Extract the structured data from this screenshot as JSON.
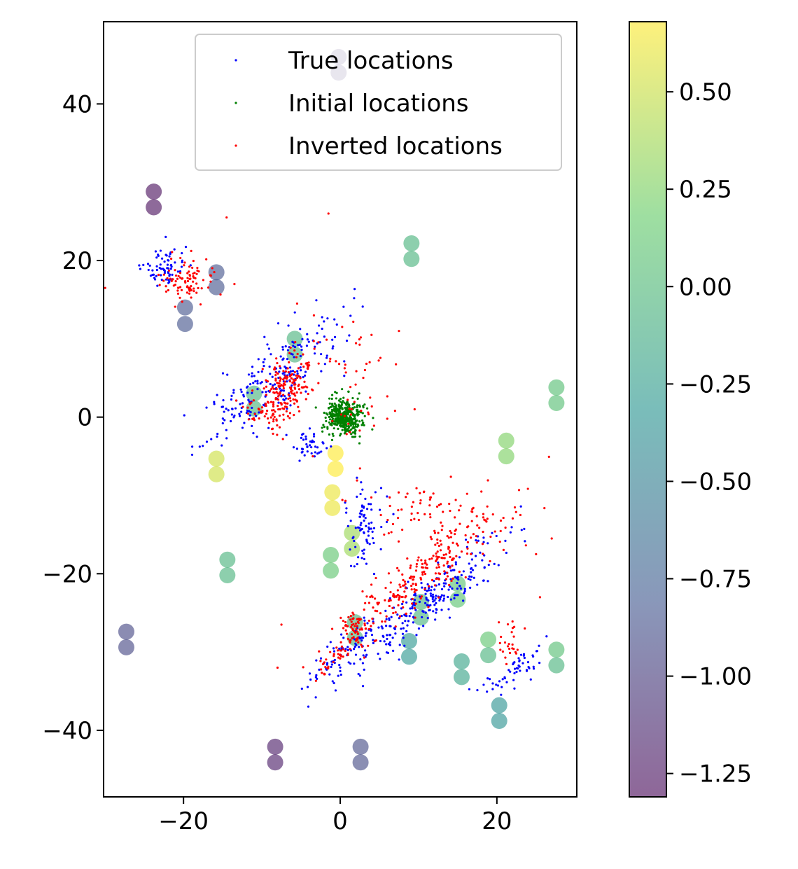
{
  "chart_data": {
    "type": "scatter",
    "xlim": [
      -30.2,
      30.2
    ],
    "ylim": [
      -48.5,
      50.5
    ],
    "x_ticks": [
      -20,
      0,
      20
    ],
    "y_ticks": [
      -40,
      -20,
      0,
      20,
      40
    ],
    "x_tick_labels": [
      "−20",
      "0",
      "20"
    ],
    "y_tick_labels": [
      "−40",
      "−20",
      "0",
      "20",
      "40"
    ],
    "grid": false,
    "legend": {
      "position": "top-right",
      "entries": [
        {
          "label": "True locations",
          "color": "#0000ff"
        },
        {
          "label": "Initial locations",
          "color": "#008000"
        },
        {
          "label": "Inverted locations",
          "color": "#ff0000"
        }
      ]
    },
    "colorbar": {
      "colormap": "viridis",
      "alpha": 0.6,
      "range": [
        -1.31,
        0.68
      ],
      "ticks": [
        0.5,
        0.25,
        0.0,
        -0.25,
        -0.5,
        -0.75,
        -1.0,
        -1.25
      ],
      "tick_labels": [
        "0.50",
        "0.25",
        "0.00",
        "−0.25",
        "−0.50",
        "−0.75",
        "−1.00",
        "−1.25"
      ]
    },
    "stations": [
      {
        "x": -0.2,
        "y": 46.0,
        "v": -1.05
      },
      {
        "x": -0.2,
        "y": 44.0,
        "v": -1.05
      },
      {
        "x": -23.8,
        "y": 28.8,
        "v": -1.28
      },
      {
        "x": -23.8,
        "y": 26.8,
        "v": -1.28
      },
      {
        "x": 9.1,
        "y": 22.2,
        "v": -0.05
      },
      {
        "x": 9.1,
        "y": 20.2,
        "v": -0.05
      },
      {
        "x": -15.8,
        "y": 18.5,
        "v": -0.85
      },
      {
        "x": -15.8,
        "y": 16.6,
        "v": -0.85
      },
      {
        "x": -19.8,
        "y": 14.0,
        "v": -0.85
      },
      {
        "x": -19.8,
        "y": 11.9,
        "v": -0.85
      },
      {
        "x": -5.8,
        "y": 10.0,
        "v": -0.05
      },
      {
        "x": -5.8,
        "y": 8.0,
        "v": -0.05
      },
      {
        "x": 27.6,
        "y": 3.8,
        "v": 0.05
      },
      {
        "x": 27.6,
        "y": 1.8,
        "v": 0.05
      },
      {
        "x": -11.0,
        "y": 3.0,
        "v": -0.05
      },
      {
        "x": -11.0,
        "y": 1.1,
        "v": -0.05
      },
      {
        "x": 21.2,
        "y": -3.0,
        "v": 0.25
      },
      {
        "x": 21.2,
        "y": -5.0,
        "v": 0.25
      },
      {
        "x": -15.8,
        "y": -5.3,
        "v": 0.52
      },
      {
        "x": -15.8,
        "y": -7.3,
        "v": 0.52
      },
      {
        "x": -0.6,
        "y": -4.6,
        "v": 0.68
      },
      {
        "x": -0.6,
        "y": -6.6,
        "v": 0.68
      },
      {
        "x": -1.0,
        "y": -9.6,
        "v": 0.62
      },
      {
        "x": -1.0,
        "y": -11.6,
        "v": 0.62
      },
      {
        "x": 1.5,
        "y": -14.8,
        "v": 0.35
      },
      {
        "x": 1.5,
        "y": -16.8,
        "v": 0.35
      },
      {
        "x": -14.4,
        "y": -18.2,
        "v": -0.05
      },
      {
        "x": -14.4,
        "y": -20.2,
        "v": -0.05
      },
      {
        "x": -1.2,
        "y": -17.6,
        "v": 0.12
      },
      {
        "x": -1.2,
        "y": -19.6,
        "v": 0.12
      },
      {
        "x": 15.0,
        "y": -21.3,
        "v": 0.1
      },
      {
        "x": 15.0,
        "y": -23.3,
        "v": 0.1
      },
      {
        "x": 10.3,
        "y": -23.6,
        "v": -0.05
      },
      {
        "x": 10.3,
        "y": -25.6,
        "v": -0.05
      },
      {
        "x": 1.9,
        "y": -26.2,
        "v": -0.05
      },
      {
        "x": 1.9,
        "y": -28.2,
        "v": -0.05
      },
      {
        "x": -27.3,
        "y": -27.4,
        "v": -0.92
      },
      {
        "x": -27.3,
        "y": -29.4,
        "v": -0.92
      },
      {
        "x": 8.8,
        "y": -28.6,
        "v": -0.3
      },
      {
        "x": 8.8,
        "y": -30.6,
        "v": -0.3
      },
      {
        "x": 18.9,
        "y": -28.4,
        "v": 0.12
      },
      {
        "x": 18.9,
        "y": -30.4,
        "v": -0.05
      },
      {
        "x": 27.6,
        "y": -29.7,
        "v": 0.05
      },
      {
        "x": 27.6,
        "y": -31.7,
        "v": -0.05
      },
      {
        "x": 15.5,
        "y": -31.2,
        "v": -0.2
      },
      {
        "x": 15.5,
        "y": -33.2,
        "v": -0.2
      },
      {
        "x": 20.3,
        "y": -36.8,
        "v": -0.35
      },
      {
        "x": 20.3,
        "y": -38.8,
        "v": -0.35
      },
      {
        "x": -8.3,
        "y": -42.1,
        "v": -1.2
      },
      {
        "x": -8.3,
        "y": -44.1,
        "v": -1.2
      },
      {
        "x": 2.6,
        "y": -42.1,
        "v": -0.9
      },
      {
        "x": 2.6,
        "y": -44.1,
        "v": -0.9
      }
    ],
    "series": [
      {
        "name": "True locations",
        "color": "#0000ff",
        "clusters": [
          {
            "n": 70,
            "cx": -22.5,
            "cy": 19.0,
            "sx": 1.6,
            "sy": 1.3,
            "rot": 35
          },
          {
            "n": 230,
            "cx": -8.5,
            "cy": 5.0,
            "sx": 1.9,
            "sy": 5.5,
            "rot": -50
          },
          {
            "n": 40,
            "cx": -4.0,
            "cy": -3.8,
            "sx": 1.1,
            "sy": 0.9,
            "rot": 0
          },
          {
            "n": 80,
            "cx": 3.0,
            "cy": -14.0,
            "sx": 1.3,
            "sy": 3.0,
            "rot": 0
          },
          {
            "n": 260,
            "cx": 11.0,
            "cy": -23.5,
            "sx": 1.5,
            "sy": 6.5,
            "rot": -52
          },
          {
            "n": 55,
            "cx": 22.5,
            "cy": -32.5,
            "sx": 0.9,
            "sy": 2.6,
            "rot": -52
          },
          {
            "n": 65,
            "cx": 0.0,
            "cy": -30.5,
            "sx": 0.9,
            "sy": 3.2,
            "rot": -48
          }
        ]
      },
      {
        "name": "Initial locations",
        "color": "#008000",
        "clusters": [
          {
            "n": 420,
            "cx": 0.5,
            "cy": 0.0,
            "sx": 1.15,
            "sy": 1.15,
            "rot": 0
          }
        ]
      },
      {
        "name": "Inverted locations",
        "color": "#ff0000",
        "clusters": [
          {
            "n": 90,
            "cx": -19.5,
            "cy": 17.5,
            "sx": 1.6,
            "sy": 1.5,
            "rot": 0
          },
          {
            "n": 220,
            "cx": -7.3,
            "cy": 3.0,
            "sx": 1.6,
            "sy": 3.2,
            "rot": -35
          },
          {
            "n": 40,
            "cx": 3.0,
            "cy": 4.5,
            "sx": 2.2,
            "sy": 3.0,
            "rot": 0
          },
          {
            "n": 250,
            "cx": 10.0,
            "cy": -20.5,
            "sx": 1.6,
            "sy": 6.5,
            "rot": -52
          },
          {
            "n": 80,
            "cx": 12.0,
            "cy": -12.0,
            "sx": 4.5,
            "sy": 2.2,
            "rot": 0
          },
          {
            "n": 25,
            "cx": 21.5,
            "cy": -29.0,
            "sx": 1.0,
            "sy": 1.5,
            "rot": 0
          },
          {
            "n": 45,
            "cx": 1.7,
            "cy": -27.0,
            "sx": 0.7,
            "sy": 1.4,
            "rot": 0
          },
          {
            "n": 35,
            "cx": -0.8,
            "cy": -31.0,
            "sx": 0.6,
            "sy": 1.6,
            "rot": -40
          }
        ],
        "outliers": [
          [
            -30.0,
            16.5
          ],
          [
            -14.5,
            25.5
          ],
          [
            -1.5,
            26.0
          ],
          [
            -13.5,
            17.0
          ],
          [
            -5.5,
            14.5
          ],
          [
            7.5,
            11.0
          ],
          [
            9.5,
            1.0
          ],
          [
            7.0,
            0.8
          ],
          [
            23.0,
            -12.5
          ],
          [
            27.0,
            -15.5
          ],
          [
            25.0,
            -17.5
          ],
          [
            25.5,
            -23.0
          ],
          [
            -7.5,
            -26.5
          ],
          [
            -8.0,
            -32.0
          ],
          [
            -3.5,
            -5.0
          ],
          [
            4.0,
            10.5
          ],
          [
            -1.0,
            -0.5
          ]
        ]
      }
    ]
  }
}
